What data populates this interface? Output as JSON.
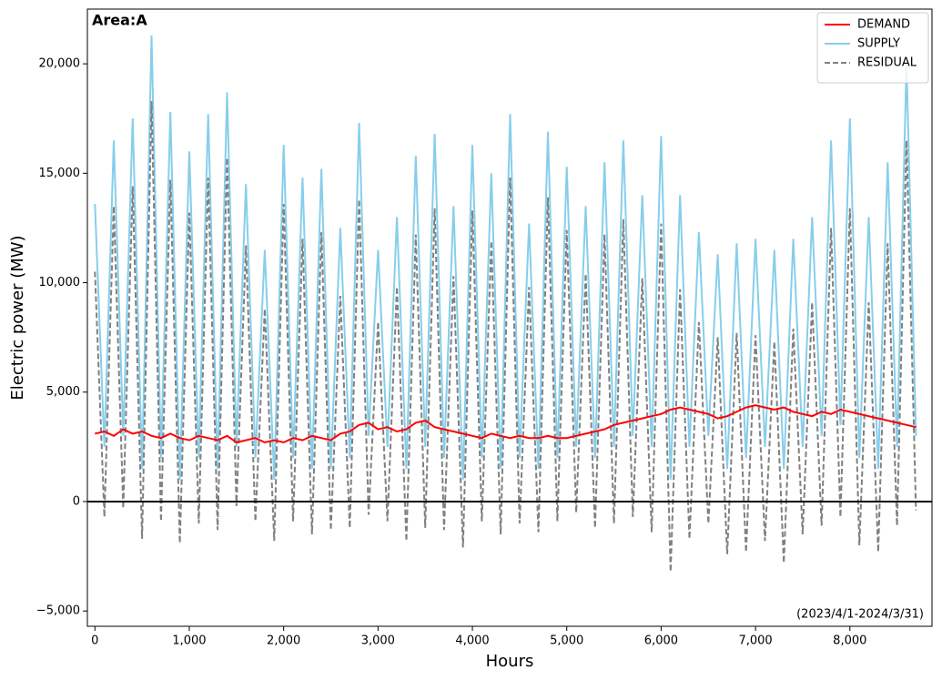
{
  "chart_data": {
    "type": "line",
    "annotation": "Area:A",
    "period": "(2023/4/1-2024/3/31)",
    "x_label": "Hours",
    "y_label": "Electric power (MW)",
    "xlim": [
      -80,
      8870
    ],
    "ylim": [
      -5700,
      22500
    ],
    "xticks": [
      0,
      {
        "value": 1000,
        "label": "1,000"
      },
      {
        "value": 2000,
        "label": "2,000"
      },
      {
        "value": 3000,
        "label": "3,000"
      },
      {
        "value": 4000,
        "label": "4,000"
      },
      {
        "value": 5000,
        "label": "5,000"
      },
      {
        "value": 6000,
        "label": "6,000"
      },
      {
        "value": 7000,
        "label": "7,000"
      },
      {
        "value": 8000,
        "label": "8,000"
      }
    ],
    "yticks": [
      {
        "value": -5000,
        "label": "−5,000"
      },
      0,
      {
        "value": 5000,
        "label": "5,000"
      },
      {
        "value": 10000,
        "label": "10,000"
      },
      {
        "value": 15000,
        "label": "15,000"
      },
      {
        "value": 20000,
        "label": "20,000"
      }
    ],
    "legend": "upper right",
    "x": [
      0,
      100,
      200,
      300,
      400,
      500,
      600,
      700,
      800,
      900,
      1000,
      1100,
      1200,
      1300,
      1400,
      1500,
      1600,
      1700,
      1800,
      1900,
      2000,
      2100,
      2200,
      2300,
      2400,
      2500,
      2600,
      2700,
      2800,
      2900,
      3000,
      3100,
      3200,
      3300,
      3400,
      3500,
      3600,
      3700,
      3800,
      3900,
      4000,
      4100,
      4200,
      4300,
      4400,
      4500,
      4600,
      4700,
      4800,
      4900,
      5000,
      5100,
      5200,
      5300,
      5400,
      5500,
      5600,
      5700,
      5800,
      5900,
      6000,
      6100,
      6200,
      6300,
      6400,
      6500,
      6600,
      6700,
      6800,
      6900,
      7000,
      7100,
      7200,
      7300,
      7400,
      7500,
      7600,
      7700,
      7800,
      7900,
      8000,
      8100,
      8200,
      8300,
      8400,
      8500,
      8600,
      8700
    ],
    "series": [
      {
        "name": "DEMAND",
        "color": "#ff0000",
        "dash": false,
        "values": [
          3100,
          3200,
          3000,
          3300,
          3100,
          3200,
          3000,
          2900,
          3100,
          2900,
          2800,
          3000,
          2900,
          2800,
          3000,
          2700,
          2800,
          2900,
          2700,
          2800,
          2700,
          2900,
          2800,
          3000,
          2900,
          2800,
          3100,
          3200,
          3500,
          3600,
          3300,
          3400,
          3200,
          3300,
          3600,
          3700,
          3400,
          3300,
          3200,
          3100,
          3000,
          2900,
          3100,
          3000,
          2900,
          3000,
          2900,
          2900,
          3000,
          2900,
          2900,
          3000,
          3100,
          3200,
          3300,
          3500,
          3600,
          3700,
          3800,
          3900,
          4000,
          4200,
          4300,
          4200,
          4100,
          4000,
          3800,
          3900,
          4100,
          4300,
          4400,
          4300,
          4200,
          4300,
          4100,
          4000,
          3900,
          4100,
          4000,
          4200,
          4100,
          4000,
          3900,
          3800,
          3700,
          3600,
          3500,
          3400
        ]
      },
      {
        "name": "SUPPLY",
        "color": "#87ceeb",
        "dash": false,
        "values": [
          13600,
          2500,
          16500,
          3000,
          17500,
          1500,
          21300,
          2000,
          17800,
          1000,
          16000,
          2000,
          17700,
          1500,
          18700,
          2500,
          14500,
          2000,
          11500,
          1000,
          16300,
          2000,
          14800,
          1500,
          15200,
          1500,
          12500,
          2000,
          17300,
          3000,
          11500,
          2500,
          13000,
          1500,
          15800,
          2500,
          16800,
          2000,
          13500,
          1000,
          16300,
          2000,
          15000,
          1500,
          17700,
          2000,
          12700,
          1500,
          16900,
          2000,
          15300,
          2500,
          13500,
          2000,
          15500,
          2500,
          16500,
          3000,
          14000,
          2500,
          16700,
          1000,
          14000,
          2500,
          12300,
          3000,
          11300,
          1500,
          11800,
          2000,
          12000,
          2500,
          11500,
          1500,
          12000,
          2500,
          13000,
          3000,
          16500,
          3500,
          17500,
          2000,
          13000,
          1500,
          15500,
          2500,
          20000,
          3000
        ]
      },
      {
        "name": "RESIDUAL",
        "color": "#808080",
        "dash": true,
        "values": [
          10500,
          -700,
          13500,
          -300,
          14400,
          -1700,
          18300,
          -900,
          14700,
          -1900,
          13200,
          -1000,
          14800,
          -1300,
          15700,
          -200,
          11700,
          -900,
          8800,
          -1800,
          13600,
          -900,
          12000,
          -1500,
          12300,
          -1300,
          9400,
          -1200,
          13800,
          -600,
          8200,
          -900,
          9800,
          -1800,
          12200,
          -1200,
          13400,
          -1300,
          10300,
          -2100,
          13300,
          -900,
          11900,
          -1500,
          14800,
          -1000,
          9800,
          -1400,
          13900,
          -900,
          12400,
          -500,
          10400,
          -1200,
          12200,
          -1000,
          12900,
          -700,
          10200,
          -1400,
          12700,
          -3200,
          9700,
          -1700,
          8200,
          -1000,
          7500,
          -2400,
          7700,
          -2300,
          7600,
          -1800,
          7300,
          -2800,
          7900,
          -1500,
          9100,
          -1100,
          12500,
          -700,
          13400,
          -2000,
          9100,
          -2300,
          11800,
          -1100,
          16500,
          -400
        ]
      }
    ]
  }
}
